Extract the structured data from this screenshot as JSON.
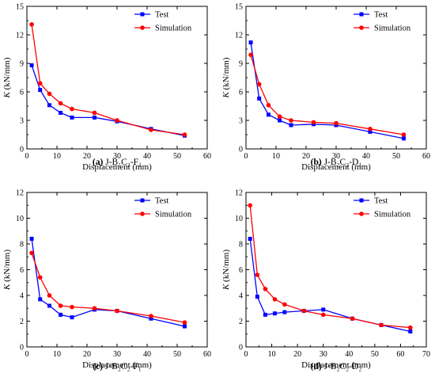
{
  "chart_data": [
    {
      "type": "line",
      "caption": "(a) J-B₁C₂-F₁",
      "caption_tag": "(a)",
      "caption_text": "J-B₁C₂-F₁",
      "xlabel": "Displacement (mm)",
      "ylabel_italic": "K",
      "ylabel_unit": " (kN/mm)",
      "xlim": [
        0,
        60
      ],
      "ylim": [
        0,
        15
      ],
      "xticks": [
        "0",
        "10",
        "20",
        "30",
        "40",
        "50",
        "60"
      ],
      "yticks": [
        "0",
        "3",
        "6",
        "9",
        "12",
        "15"
      ],
      "legend_position": "top-right",
      "grid": false,
      "series": [
        {
          "name": "Test",
          "color": "#0000ff",
          "marker": "square",
          "x": [
            1.6,
            4.4,
            7.5,
            11.2,
            15.0,
            22.5,
            30.0,
            41.3,
            52.5
          ],
          "y": [
            8.8,
            6.2,
            4.6,
            3.8,
            3.3,
            3.3,
            2.9,
            2.1,
            1.4
          ]
        },
        {
          "name": "Simulation",
          "color": "#ff0000",
          "marker": "circle",
          "x": [
            1.6,
            4.4,
            7.5,
            11.2,
            15.0,
            22.5,
            30.0,
            41.3,
            52.5
          ],
          "y": [
            13.1,
            6.9,
            5.8,
            4.8,
            4.2,
            3.8,
            3.0,
            2.0,
            1.5
          ]
        }
      ]
    },
    {
      "type": "line",
      "caption": "(b) J-B₂C₂-D₁",
      "caption_tag": "(b)",
      "caption_text": "J-B₂C₂-D₁",
      "xlabel": "Displacement (mm)",
      "ylabel_italic": "K",
      "ylabel_unit": " (kN/mm)",
      "xlim": [
        0,
        60
      ],
      "ylim": [
        0,
        15
      ],
      "xticks": [
        "0",
        "10",
        "20",
        "30",
        "40",
        "50",
        "60"
      ],
      "yticks": [
        "0",
        "3",
        "6",
        "9",
        "12",
        "15"
      ],
      "legend_position": "top-right",
      "grid": false,
      "series": [
        {
          "name": "Test",
          "color": "#0000ff",
          "marker": "square",
          "x": [
            1.6,
            4.4,
            7.5,
            11.2,
            15.0,
            22.5,
            30.0,
            41.3,
            52.5
          ],
          "y": [
            11.2,
            5.3,
            3.6,
            3.0,
            2.5,
            2.6,
            2.5,
            1.8,
            1.1
          ]
        },
        {
          "name": "Simulation",
          "color": "#ff0000",
          "marker": "circle",
          "x": [
            1.6,
            4.4,
            7.5,
            11.2,
            15.0,
            22.5,
            30.0,
            41.3,
            52.5
          ],
          "y": [
            9.9,
            6.8,
            4.6,
            3.4,
            3.0,
            2.8,
            2.7,
            2.1,
            1.5
          ]
        }
      ]
    },
    {
      "type": "line",
      "caption": "(c) J-B₂C₂-F₁",
      "caption_tag": "(c)",
      "caption_text": "J-B₂C₂-F₁",
      "xlabel": "Displacement (mm)",
      "ylabel_italic": "K",
      "ylabel_unit": " (kN/mm)",
      "xlim": [
        0,
        60
      ],
      "ylim": [
        0,
        12
      ],
      "xticks": [
        "0",
        "10",
        "20",
        "30",
        "40",
        "50",
        "60"
      ],
      "yticks": [
        "0",
        "2",
        "4",
        "6",
        "8",
        "10",
        "12"
      ],
      "legend_position": "top-right",
      "grid": false,
      "series": [
        {
          "name": "Test",
          "color": "#0000ff",
          "marker": "square",
          "x": [
            1.6,
            4.4,
            7.5,
            11.2,
            15.0,
            22.5,
            30.0,
            41.3,
            52.5
          ],
          "y": [
            8.4,
            3.7,
            3.2,
            2.5,
            2.3,
            2.9,
            2.8,
            2.2,
            1.6
          ]
        },
        {
          "name": "Simulation",
          "color": "#ff0000",
          "marker": "circle",
          "x": [
            1.6,
            4.4,
            7.5,
            11.2,
            15.0,
            22.5,
            30.0,
            41.3,
            52.5
          ],
          "y": [
            7.3,
            5.4,
            4.0,
            3.2,
            3.1,
            3.0,
            2.8,
            2.4,
            1.9
          ]
        }
      ]
    },
    {
      "type": "line",
      "caption": "(d) J-B₂C₂-D₂",
      "caption_tag": "(d)",
      "caption_text": "J-B₂C₂-D₂",
      "xlabel": "Displacement (mm)",
      "ylabel_italic": "K",
      "ylabel_unit": " (kN/mm)",
      "xlim": [
        0,
        70
      ],
      "ylim": [
        0,
        12
      ],
      "xticks": [
        "0",
        "10",
        "20",
        "30",
        "40",
        "50",
        "60",
        "70"
      ],
      "yticks": [
        "0",
        "2",
        "4",
        "6",
        "8",
        "10",
        "12"
      ],
      "legend_position": "top-right",
      "grid": false,
      "series": [
        {
          "name": "Test",
          "color": "#0000ff",
          "marker": "square",
          "x": [
            1.6,
            4.4,
            7.5,
            11.2,
            15.0,
            22.5,
            30.0,
            41.3,
            52.5,
            63.8
          ],
          "y": [
            8.4,
            3.9,
            2.5,
            2.6,
            2.7,
            2.8,
            2.9,
            2.2,
            1.7,
            1.2
          ]
        },
        {
          "name": "Simulation",
          "color": "#ff0000",
          "marker": "circle",
          "x": [
            1.6,
            4.4,
            7.5,
            11.2,
            15.0,
            22.5,
            30.0,
            41.3,
            52.5,
            63.8
          ],
          "y": [
            11.0,
            5.6,
            4.5,
            3.7,
            3.3,
            2.8,
            2.5,
            2.2,
            1.7,
            1.5
          ]
        }
      ]
    }
  ]
}
